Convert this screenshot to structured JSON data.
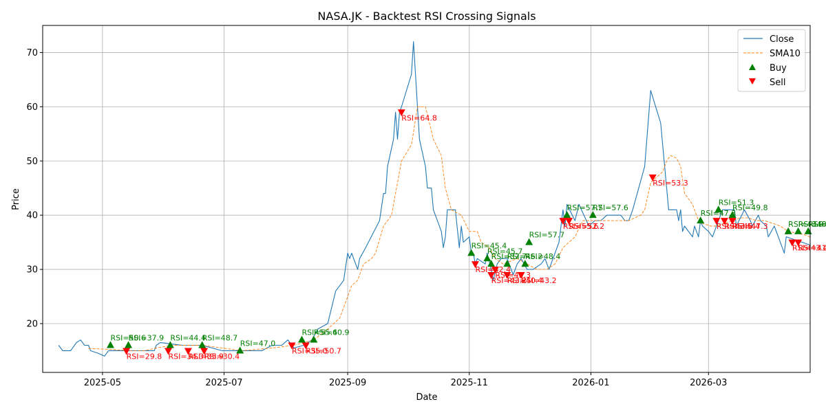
{
  "chart_data": {
    "type": "line",
    "title": "NASA.JK - Backtest RSI Crossing Signals",
    "xlabel": "Date",
    "ylabel": "Price",
    "x_range": [
      "2025-04-01",
      "2026-04-21"
    ],
    "ylim": [
      11,
      75
    ],
    "x_ticks": [
      {
        "date": "2025-05-01",
        "label": "2025-05"
      },
      {
        "date": "2025-07-01",
        "label": "2025-07"
      },
      {
        "date": "2025-09-01",
        "label": "2025-09"
      },
      {
        "date": "2025-11-01",
        "label": "2025-11"
      },
      {
        "date": "2026-01-01",
        "label": "2026-01"
      },
      {
        "date": "2026-03-01",
        "label": "2026-03"
      }
    ],
    "y_ticks": [
      20,
      30,
      40,
      50,
      60,
      70
    ],
    "grid": true,
    "legend_position": "top-right",
    "colors": {
      "close": "#1f77b4",
      "sma": "#ff7f0e",
      "buy": "#008000",
      "sell": "#ff0000"
    },
    "series": [
      {
        "name": "Close",
        "style": "solid",
        "points": [
          [
            "2025-04-09",
            16
          ],
          [
            "2025-04-11",
            15
          ],
          [
            "2025-04-15",
            15
          ],
          [
            "2025-04-18",
            16.5
          ],
          [
            "2025-04-20",
            17
          ],
          [
            "2025-04-22",
            16
          ],
          [
            "2025-04-24",
            16
          ],
          [
            "2025-04-25",
            15
          ],
          [
            "2025-04-29",
            14.5
          ],
          [
            "2025-05-02",
            14
          ],
          [
            "2025-05-04",
            15
          ],
          [
            "2025-05-22",
            15
          ],
          [
            "2025-05-27",
            15
          ],
          [
            "2025-05-28",
            16
          ],
          [
            "2025-05-30",
            16.5
          ],
          [
            "2025-06-10",
            16
          ],
          [
            "2025-06-20",
            16
          ],
          [
            "2025-06-30",
            15
          ],
          [
            "2025-07-10",
            15
          ],
          [
            "2025-07-20",
            15
          ],
          [
            "2025-07-25",
            16
          ],
          [
            "2025-07-30",
            16
          ],
          [
            "2025-08-02",
            17
          ],
          [
            "2025-08-05",
            15.5
          ],
          [
            "2025-08-10",
            16
          ],
          [
            "2025-08-14",
            17
          ],
          [
            "2025-08-17",
            19
          ],
          [
            "2025-08-22",
            20
          ],
          [
            "2025-08-26",
            26
          ],
          [
            "2025-08-30",
            28
          ],
          [
            "2025-09-01",
            33
          ],
          [
            "2025-09-02",
            32
          ],
          [
            "2025-09-03",
            33
          ],
          [
            "2025-09-06",
            30
          ],
          [
            "2025-09-07",
            32
          ],
          [
            "2025-09-10",
            34
          ],
          [
            "2025-09-17",
            39
          ],
          [
            "2025-09-19",
            44
          ],
          [
            "2025-09-20",
            44
          ],
          [
            "2025-09-21",
            49
          ],
          [
            "2025-09-24",
            54
          ],
          [
            "2025-09-25",
            59
          ],
          [
            "2025-09-26",
            54
          ],
          [
            "2025-09-27",
            59
          ],
          [
            "2025-09-28",
            60
          ],
          [
            "2025-10-03",
            66
          ],
          [
            "2025-10-04",
            72
          ],
          [
            "2025-10-06",
            60
          ],
          [
            "2025-10-07",
            54
          ],
          [
            "2025-10-10",
            49
          ],
          [
            "2025-10-11",
            45
          ],
          [
            "2025-10-13",
            45
          ],
          [
            "2025-10-14",
            41
          ],
          [
            "2025-10-18",
            37
          ],
          [
            "2025-10-19",
            34
          ],
          [
            "2025-10-20",
            36
          ],
          [
            "2025-10-21",
            41
          ],
          [
            "2025-10-25",
            41
          ],
          [
            "2025-10-27",
            34
          ],
          [
            "2025-10-28",
            38
          ],
          [
            "2025-10-29",
            35
          ],
          [
            "2025-11-01",
            36
          ],
          [
            "2025-11-02",
            33
          ],
          [
            "2025-11-03",
            33
          ],
          [
            "2025-11-04",
            31
          ],
          [
            "2025-11-05",
            32
          ],
          [
            "2025-11-09",
            31
          ],
          [
            "2025-11-10",
            33
          ],
          [
            "2025-11-12",
            30
          ],
          [
            "2025-11-13",
            28
          ],
          [
            "2025-11-15",
            31
          ],
          [
            "2025-11-17",
            32
          ],
          [
            "2025-11-20",
            32
          ],
          [
            "2025-11-23",
            29
          ],
          [
            "2025-11-25",
            31
          ],
          [
            "2025-11-27",
            32
          ],
          [
            "2025-11-30",
            30
          ],
          [
            "2025-12-03",
            30
          ],
          [
            "2025-12-07",
            31
          ],
          [
            "2025-12-09",
            32
          ],
          [
            "2025-12-11",
            30
          ],
          [
            "2025-12-13",
            32
          ],
          [
            "2025-12-16",
            35
          ],
          [
            "2025-12-18",
            41
          ],
          [
            "2025-12-19",
            38
          ],
          [
            "2025-12-20",
            42
          ],
          [
            "2025-12-24",
            39
          ],
          [
            "2025-12-26",
            42
          ],
          [
            "2025-12-31",
            38
          ],
          [
            "2026-01-03",
            39
          ],
          [
            "2026-01-06",
            39
          ],
          [
            "2026-01-09",
            40
          ],
          [
            "2026-01-13",
            40
          ],
          [
            "2026-01-16",
            40
          ],
          [
            "2026-01-18",
            39
          ],
          [
            "2026-01-20",
            39
          ],
          [
            "2026-01-22",
            41
          ],
          [
            "2026-01-25",
            45
          ],
          [
            "2026-01-28",
            49
          ],
          [
            "2026-01-31",
            63
          ],
          [
            "2026-02-05",
            57
          ],
          [
            "2026-02-09",
            41
          ],
          [
            "2026-02-13",
            41
          ],
          [
            "2026-02-14",
            39
          ],
          [
            "2026-02-15",
            41
          ],
          [
            "2026-02-16",
            37
          ],
          [
            "2026-02-17",
            38
          ],
          [
            "2026-02-21",
            36
          ],
          [
            "2026-02-22",
            38
          ],
          [
            "2026-02-24",
            36
          ],
          [
            "2026-02-25",
            39
          ],
          [
            "2026-02-26",
            38
          ],
          [
            "2026-03-01",
            37
          ],
          [
            "2026-03-03",
            36
          ],
          [
            "2026-03-06",
            39
          ],
          [
            "2026-03-08",
            41
          ],
          [
            "2026-03-10",
            41
          ],
          [
            "2026-03-14",
            41
          ],
          [
            "2026-03-15",
            38
          ],
          [
            "2026-03-19",
            41
          ],
          [
            "2026-03-22",
            39
          ],
          [
            "2026-03-23",
            38
          ],
          [
            "2026-03-26",
            40
          ],
          [
            "2026-03-27",
            39
          ],
          [
            "2026-03-30",
            38
          ],
          [
            "2026-03-31",
            36
          ],
          [
            "2026-04-03",
            38
          ],
          [
            "2026-04-05",
            36
          ],
          [
            "2026-04-08",
            33
          ],
          [
            "2026-04-09",
            36
          ],
          [
            "2026-04-17",
            35
          ],
          [
            "2026-04-25",
            34.5
          ],
          [
            "2026-04-27",
            37
          ],
          [
            "2026-04-29",
            35
          ],
          [
            "2026-05-01",
            36
          ],
          [
            "2026-05-03",
            34
          ],
          [
            "2026-05-06",
            35
          ],
          [
            "2026-05-08",
            36
          ]
        ]
      },
      {
        "name": "SMA10",
        "style": "dashed",
        "points": [
          [
            "2025-04-24",
            15.4
          ],
          [
            "2025-05-02",
            15.3
          ],
          [
            "2025-05-15",
            15
          ],
          [
            "2025-05-22",
            15
          ],
          [
            "2025-05-28",
            15.5
          ],
          [
            "2025-06-05",
            16
          ],
          [
            "2025-06-20",
            16
          ],
          [
            "2025-06-30",
            15.5
          ],
          [
            "2025-07-10",
            15
          ],
          [
            "2025-07-25",
            15.5
          ],
          [
            "2025-08-05",
            16
          ],
          [
            "2025-08-15",
            17
          ],
          [
            "2025-08-22",
            19
          ],
          [
            "2025-08-28",
            21
          ],
          [
            "2025-09-03",
            27
          ],
          [
            "2025-09-06",
            28
          ],
          [
            "2025-09-09",
            31
          ],
          [
            "2025-09-13",
            32
          ],
          [
            "2025-09-15",
            33
          ],
          [
            "2025-09-19",
            38
          ],
          [
            "2025-09-23",
            40
          ],
          [
            "2025-09-28",
            50
          ],
          [
            "2025-10-03",
            53
          ],
          [
            "2025-10-06",
            60
          ],
          [
            "2025-10-10",
            60
          ],
          [
            "2025-10-14",
            54
          ],
          [
            "2025-10-18",
            51
          ],
          [
            "2025-10-20",
            45
          ],
          [
            "2025-10-23",
            41
          ],
          [
            "2025-10-28",
            40
          ],
          [
            "2025-11-01",
            37
          ],
          [
            "2025-11-05",
            37
          ],
          [
            "2025-11-07",
            35
          ],
          [
            "2025-11-11",
            34
          ],
          [
            "2025-11-14",
            32
          ],
          [
            "2025-11-18",
            31
          ],
          [
            "2025-11-25",
            32
          ],
          [
            "2025-11-30",
            31
          ],
          [
            "2025-12-05",
            30
          ],
          [
            "2025-12-10",
            30
          ],
          [
            "2025-12-14",
            31
          ],
          [
            "2025-12-18",
            34
          ],
          [
            "2025-12-24",
            36
          ],
          [
            "2025-12-28",
            39
          ],
          [
            "2026-01-02",
            39
          ],
          [
            "2026-01-10",
            39
          ],
          [
            "2026-01-20",
            39
          ],
          [
            "2026-01-26",
            40
          ],
          [
            "2026-01-28",
            41
          ],
          [
            "2026-01-31",
            46
          ],
          [
            "2026-02-03",
            47
          ],
          [
            "2026-02-06",
            48
          ],
          [
            "2026-02-08",
            50
          ],
          [
            "2026-02-10",
            51
          ],
          [
            "2026-02-13",
            50.5
          ],
          [
            "2026-02-15",
            49
          ],
          [
            "2026-02-17",
            44
          ],
          [
            "2026-02-21",
            42
          ],
          [
            "2026-02-24",
            39
          ],
          [
            "2026-02-26",
            38.5
          ],
          [
            "2026-03-02",
            38
          ],
          [
            "2026-03-05",
            38
          ],
          [
            "2026-03-09",
            38.5
          ],
          [
            "2026-03-13",
            39
          ],
          [
            "2026-03-17",
            39.5
          ],
          [
            "2026-03-21",
            39.5
          ],
          [
            "2026-03-25",
            39
          ],
          [
            "2026-03-29",
            39
          ],
          [
            "2026-04-02",
            38.5
          ],
          [
            "2026-04-06",
            38
          ],
          [
            "2026-04-10",
            37
          ],
          [
            "2026-04-17",
            36.5
          ],
          [
            "2026-04-26",
            36
          ],
          [
            "2026-05-01",
            35
          ],
          [
            "2026-05-08",
            36
          ]
        ]
      }
    ],
    "buy_signals": [
      {
        "date": "2025-05-05",
        "price": 16,
        "label": "RSI=50.6"
      },
      {
        "date": "2025-05-14",
        "price": 16,
        "label": "RSI=37.9"
      },
      {
        "date": "2025-06-04",
        "price": 16,
        "label": "RSI=44.4"
      },
      {
        "date": "2025-06-20",
        "price": 16,
        "label": "RSI=48.7"
      },
      {
        "date": "2025-07-09",
        "price": 15,
        "label": "RSI=47.0"
      },
      {
        "date": "2025-08-09",
        "price": 17,
        "label": "RSI=55.4"
      },
      {
        "date": "2025-08-15",
        "price": 17,
        "label": "RSI=60.9"
      },
      {
        "date": "2025-11-02",
        "price": 33,
        "label": "RSI=45.4"
      },
      {
        "date": "2025-11-10",
        "price": 32,
        "label": "RSI=45.7"
      },
      {
        "date": "2025-11-12",
        "price": 31,
        "label": "RSI=37.7"
      },
      {
        "date": "2025-11-20",
        "price": 31,
        "label": "RSI=46.2"
      },
      {
        "date": "2025-11-29",
        "price": 31,
        "label": "RSI=48.4"
      },
      {
        "date": "2025-12-01",
        "price": 35,
        "label": "RSI=57.7"
      },
      {
        "date": "2025-12-20",
        "price": 40,
        "label": "RSI=57.7"
      },
      {
        "date": "2026-01-02",
        "price": 40,
        "label": "RSI=57.6"
      },
      {
        "date": "2026-02-25",
        "price": 39,
        "label": "RSI=47.3"
      },
      {
        "date": "2026-03-06",
        "price": 41,
        "label": "RSI=51.3"
      },
      {
        "date": "2026-03-13",
        "price": 40,
        "label": "RSI=49.8"
      },
      {
        "date": "2026-04-10",
        "price": 37,
        "label": "RSI=43.9"
      },
      {
        "date": "2026-04-15",
        "price": 37,
        "label": "RSI=48.0"
      },
      {
        "date": "2026-04-20",
        "price": 37,
        "label": "RSI=49.7"
      }
    ],
    "sell_signals": [
      {
        "date": "2025-05-13",
        "price": 15,
        "label": "RSI=29.8"
      },
      {
        "date": "2025-06-03",
        "price": 15,
        "label": "RSI=34.3"
      },
      {
        "date": "2025-06-13",
        "price": 15,
        "label": "RSI=35.9"
      },
      {
        "date": "2025-06-21",
        "price": 15,
        "label": "RSI=30.4"
      },
      {
        "date": "2025-08-04",
        "price": 16,
        "label": "RSI=35.0"
      },
      {
        "date": "2025-08-11",
        "price": 16,
        "label": "RSI=50.7"
      },
      {
        "date": "2025-09-28",
        "price": 59,
        "label": "RSI=64.8"
      },
      {
        "date": "2025-11-04",
        "price": 31,
        "label": "RSI=42.4"
      },
      {
        "date": "2025-11-12",
        "price": 29,
        "label": "RSI=43.2"
      },
      {
        "date": "2025-11-14",
        "price": 30,
        "label": "RSI=45.3"
      },
      {
        "date": "2025-11-20",
        "price": 29,
        "label": "RSI=40.4"
      },
      {
        "date": "2025-11-27",
        "price": 29,
        "label": "RSI=43.2"
      },
      {
        "date": "2025-12-18",
        "price": 39,
        "label": "RSI=55.6"
      },
      {
        "date": "2025-12-21",
        "price": 39,
        "label": "RSI=52.2"
      },
      {
        "date": "2026-02-01",
        "price": 47,
        "label": "RSI=53.3"
      },
      {
        "date": "2026-03-05",
        "price": 39,
        "label": "RSI=43.5"
      },
      {
        "date": "2026-03-09",
        "price": 39,
        "label": "RSI=46.4"
      },
      {
        "date": "2026-03-13",
        "price": 39,
        "label": "RSI=47.3"
      },
      {
        "date": "2026-04-12",
        "price": 35,
        "label": "RSI=43.4"
      },
      {
        "date": "2026-04-15",
        "price": 35,
        "label": "RSI=41.7"
      }
    ],
    "legend": [
      "Close",
      "SMA10",
      "Buy",
      "Sell"
    ]
  }
}
